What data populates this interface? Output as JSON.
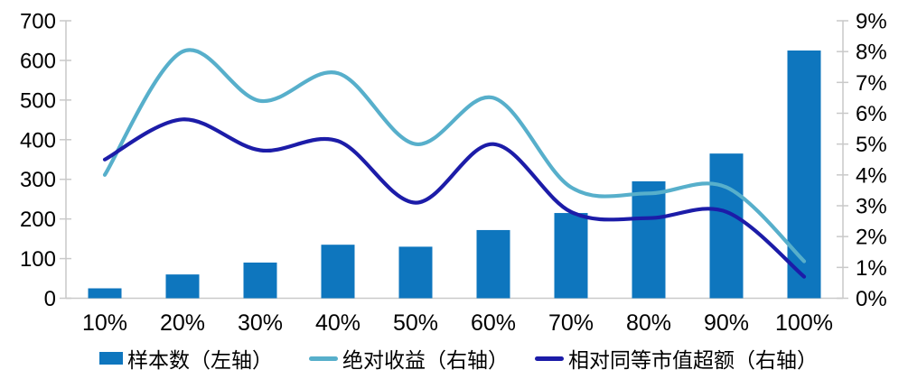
{
  "chart_data": {
    "type": "bar",
    "subtype": "combo-bar-line-dual-axis",
    "categories": [
      "10%",
      "20%",
      "30%",
      "40%",
      "50%",
      "60%",
      "70%",
      "80%",
      "90%",
      "100%"
    ],
    "series": [
      {
        "id": "sample-count-bars",
        "name": "样本数（左轴）",
        "type": "bar",
        "axis": "left",
        "color": "#0E76BE",
        "values": [
          25,
          60,
          90,
          135,
          130,
          172,
          215,
          295,
          365,
          625
        ]
      },
      {
        "id": "absolute-return-line",
        "name": "绝对收益（右轴）",
        "type": "line",
        "axis": "right",
        "color": "#57AFCB",
        "values": [
          4.0,
          8.0,
          6.4,
          7.3,
          5.0,
          6.5,
          3.6,
          3.4,
          3.6,
          1.2
        ]
      },
      {
        "id": "relative-market-cap-excess-line",
        "name": "相对同等市值超额（右轴）",
        "type": "line",
        "axis": "right",
        "color": "#1C1CA8",
        "values": [
          4.5,
          5.8,
          4.8,
          5.1,
          3.1,
          5.0,
          2.8,
          2.6,
          2.8,
          0.7
        ]
      }
    ],
    "left_axis": {
      "min": 0,
      "max": 700,
      "step": 100,
      "tick_labels": [
        "0",
        "100",
        "200",
        "300",
        "400",
        "500",
        "600",
        "700"
      ]
    },
    "right_axis": {
      "min": 0,
      "max": 9,
      "step": 1,
      "tick_labels": [
        "0%",
        "1%",
        "2%",
        "3%",
        "4%",
        "5%",
        "6%",
        "7%",
        "8%",
        "9%"
      ]
    },
    "title": "",
    "xlabel": "",
    "ylabel": "",
    "grid": false,
    "legend_position": "bottom"
  },
  "legend": {
    "items": [
      {
        "label": "样本数（左轴）",
        "swatch": "bar",
        "color": "#0E76BE"
      },
      {
        "label": "绝对收益（右轴）",
        "swatch": "line",
        "color": "#57AFCB"
      },
      {
        "label": "相对同等市值超额（右轴）",
        "swatch": "line",
        "color": "#1C1CA8"
      }
    ]
  },
  "colors": {
    "axis_line": "#C9C9C9",
    "text": "#000000",
    "background": "#FFFFFF"
  }
}
